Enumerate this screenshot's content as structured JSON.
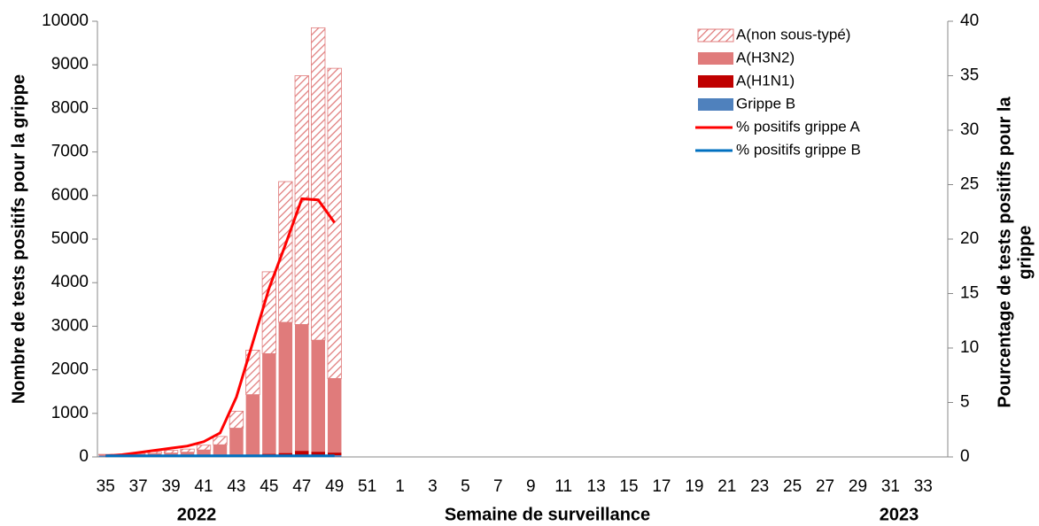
{
  "chart_data": {
    "type": "bar",
    "x_label": "Semaine de surveillance",
    "y_label": "Nombre de tests positifs pour la grippe",
    "y2_label": [
      "Pourcentage de tests positifs pour la",
      "grippe"
    ],
    "year_labels": [
      "2022",
      "2023"
    ],
    "categories": [
      "35",
      null,
      "37",
      null,
      "39",
      null,
      "41",
      null,
      "43",
      null,
      "45",
      null,
      "47",
      null,
      "49",
      null,
      "51",
      null,
      "1",
      null,
      "3",
      null,
      "5",
      null,
      "7",
      null,
      "9",
      null,
      "11",
      null,
      "13",
      null,
      "15",
      null,
      "17",
      null,
      "19",
      null,
      "21",
      null,
      "23",
      null,
      "25",
      null,
      "27",
      null,
      "29",
      null,
      "31",
      null,
      "33",
      null
    ],
    "ylim": [
      0,
      10000
    ],
    "yticks": [
      0,
      1000,
      2000,
      3000,
      4000,
      5000,
      6000,
      7000,
      8000,
      9000,
      10000
    ],
    "y2lim": [
      0,
      40
    ],
    "y2ticks": [
      0,
      5,
      10,
      15,
      20,
      25,
      30,
      35,
      40
    ],
    "series": [
      {
        "name": "A(non sous-typé)",
        "color": "#e07b7b",
        "pattern": "hatch",
        "values": [
          10,
          10,
          20,
          40,
          60,
          70,
          110,
          190,
          390,
          1020,
          1880,
          3230,
          5710,
          7170,
          7120,
          null,
          null,
          null,
          null,
          null,
          null,
          null,
          null,
          null,
          null,
          null,
          null,
          null,
          null,
          null,
          null,
          null,
          null,
          null,
          null,
          null,
          null,
          null,
          null,
          null,
          null,
          null,
          null,
          null,
          null,
          null,
          null,
          null,
          null,
          null,
          null,
          null
        ]
      },
      {
        "name": "A(H3N2)",
        "color": "#e07b7b",
        "values": [
          20,
          20,
          30,
          50,
          60,
          80,
          130,
          250,
          620,
          1380,
          2300,
          3000,
          2900,
          2560,
          1700,
          null,
          null,
          null,
          null,
          null,
          null,
          null,
          null,
          null,
          null,
          null,
          null,
          null,
          null,
          null,
          null,
          null,
          null,
          null,
          null,
          null,
          null,
          null,
          null,
          null,
          null,
          null,
          null,
          null,
          null,
          null,
          null,
          null,
          null,
          null,
          null,
          null
        ]
      },
      {
        "name": "A(H1N1)",
        "color": "#c00000",
        "values": [
          0,
          0,
          0,
          0,
          0,
          0,
          0,
          0,
          10,
          20,
          30,
          50,
          100,
          80,
          60,
          null,
          null,
          null,
          null,
          null,
          null,
          null,
          null,
          null,
          null,
          null,
          null,
          null,
          null,
          null,
          null,
          null,
          null,
          null,
          null,
          null,
          null,
          null,
          null,
          null,
          null,
          null,
          null,
          null,
          null,
          null,
          null,
          null,
          null,
          null,
          null,
          null
        ]
      },
      {
        "name": "Grippe B",
        "color": "#4f81bd",
        "values": [
          30,
          30,
          30,
          30,
          30,
          30,
          30,
          30,
          30,
          30,
          40,
          40,
          40,
          40,
          40,
          null,
          null,
          null,
          null,
          null,
          null,
          null,
          null,
          null,
          null,
          null,
          null,
          null,
          null,
          null,
          null,
          null,
          null,
          null,
          null,
          null,
          null,
          null,
          null,
          null,
          null,
          null,
          null,
          null,
          null,
          null,
          null,
          null,
          null,
          null,
          null,
          null
        ]
      },
      {
        "name": "% positifs grippe A",
        "color": "#ff0000",
        "type": "line",
        "axis": "y2",
        "values": [
          0.1,
          0.2,
          0.4,
          0.6,
          0.8,
          1.0,
          1.4,
          2.2,
          5.5,
          10.5,
          15.5,
          19.5,
          23.7,
          23.6,
          21.5,
          null,
          null,
          null,
          null,
          null,
          null,
          null,
          null,
          null,
          null,
          null,
          null,
          null,
          null,
          null,
          null,
          null,
          null,
          null,
          null,
          null,
          null,
          null,
          null,
          null,
          null,
          null,
          null,
          null,
          null,
          null,
          null,
          null,
          null,
          null,
          null,
          null
        ]
      },
      {
        "name": "% positifs grippe B",
        "color": "#0070c0",
        "type": "line",
        "axis": "y2",
        "values": [
          0.1,
          0.1,
          0.1,
          0.1,
          0.1,
          0.1,
          0.1,
          0.1,
          0.1,
          0.1,
          0.1,
          0.1,
          0.1,
          0.1,
          0.1,
          null,
          null,
          null,
          null,
          null,
          null,
          null,
          null,
          null,
          null,
          null,
          null,
          null,
          null,
          null,
          null,
          null,
          null,
          null,
          null,
          null,
          null,
          null,
          null,
          null,
          null,
          null,
          null,
          null,
          null,
          null,
          null,
          null,
          null,
          null,
          null,
          null
        ]
      }
    ]
  }
}
